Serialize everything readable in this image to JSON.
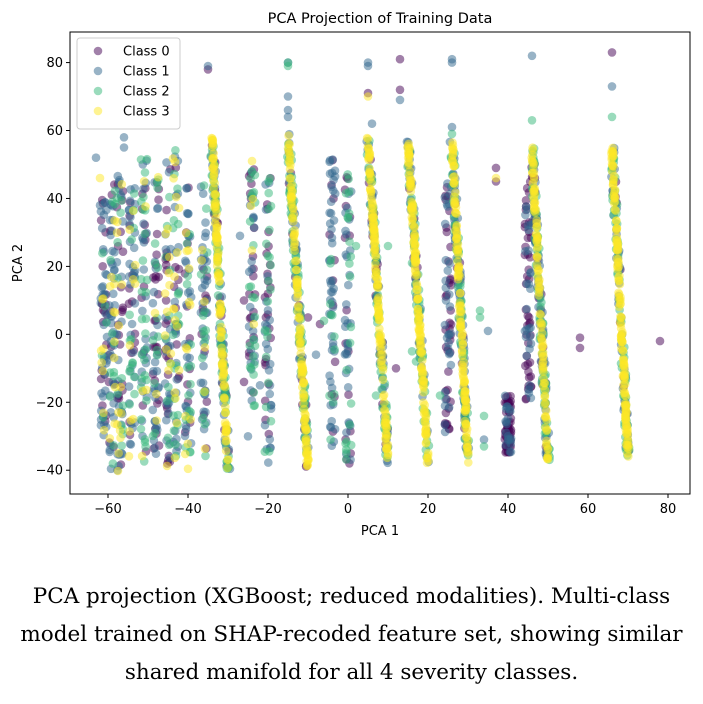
{
  "chart_data": {
    "type": "scatter",
    "title": "PCA Projection of Training Data",
    "xlabel": "PCA 1",
    "ylabel": "PCA 2",
    "xlim": [
      -69.5,
      85.5
    ],
    "ylim": [
      -47,
      89
    ],
    "xticks": [
      -60,
      -40,
      -20,
      0,
      20,
      40,
      60,
      80
    ],
    "yticks": [
      -40,
      -20,
      0,
      20,
      40,
      60,
      80
    ],
    "grid": false,
    "legend": {
      "placement": "top-left",
      "entries": [
        "Class 0",
        "Class 1",
        "Class 2",
        "Class 3"
      ]
    },
    "alpha": 0.5,
    "class_colors": [
      "#440154",
      "#31688e",
      "#35b779",
      "#fde725"
    ],
    "dense_strips": [
      {
        "x_top": -34,
        "x_bottom": -30,
        "y_min": -40,
        "y_max": 58,
        "mix": [
          0.05,
          0.2,
          0.25,
          0.5
        ]
      },
      {
        "x_top": -15,
        "x_bottom": -10,
        "y_min": -39,
        "y_max": 59,
        "mix": [
          0.05,
          0.2,
          0.25,
          0.5
        ]
      },
      {
        "x_top": 5,
        "x_bottom": 10,
        "y_min": -38,
        "y_max": 58,
        "mix": [
          0.05,
          0.2,
          0.2,
          0.55
        ]
      },
      {
        "x_top": 15,
        "x_bottom": 20,
        "y_min": -38,
        "y_max": 57,
        "mix": [
          0.05,
          0.2,
          0.2,
          0.55
        ]
      },
      {
        "x_top": 26,
        "x_bottom": 30,
        "y_min": -38,
        "y_max": 57,
        "mix": [
          0.05,
          0.2,
          0.2,
          0.55
        ]
      },
      {
        "x_top": 46,
        "x_bottom": 50,
        "y_min": -37,
        "y_max": 55,
        "mix": [
          0.05,
          0.25,
          0.25,
          0.45
        ]
      },
      {
        "x_top": 66,
        "x_bottom": 70,
        "y_min": -36,
        "y_max": 55,
        "mix": [
          0.05,
          0.2,
          0.2,
          0.55
        ]
      }
    ],
    "sparse_columns": [
      {
        "x": -61,
        "y_min": -30,
        "y_max": 40,
        "mix": [
          0.3,
          0.5,
          0.15,
          0.05
        ]
      },
      {
        "x": -59,
        "y_min": -40,
        "y_max": 45,
        "mix": [
          0.2,
          0.5,
          0.2,
          0.1
        ]
      },
      {
        "x": -57,
        "y_min": -41,
        "y_max": 49,
        "mix": [
          0.2,
          0.4,
          0.25,
          0.15
        ]
      },
      {
        "x": -54,
        "y_min": -38,
        "y_max": 44,
        "mix": [
          0.2,
          0.4,
          0.25,
          0.15
        ]
      },
      {
        "x": -51,
        "y_min": -40,
        "y_max": 53,
        "mix": [
          0.2,
          0.35,
          0.35,
          0.1
        ]
      },
      {
        "x": -48,
        "y_min": -36,
        "y_max": 50,
        "mix": [
          0.25,
          0.4,
          0.25,
          0.1
        ]
      },
      {
        "x": -45,
        "y_min": -39,
        "y_max": 51,
        "mix": [
          0.3,
          0.3,
          0.2,
          0.2
        ]
      },
      {
        "x": -43,
        "y_min": -38,
        "y_max": 55,
        "mix": [
          0.15,
          0.35,
          0.3,
          0.2
        ]
      },
      {
        "x": -40,
        "y_min": -40,
        "y_max": 45,
        "mix": [
          0.2,
          0.4,
          0.2,
          0.2
        ]
      },
      {
        "x": -36,
        "y_min": -36,
        "y_max": 45,
        "mix": [
          0.2,
          0.55,
          0.2,
          0.05
        ]
      },
      {
        "x": -24,
        "y_min": -25,
        "y_max": 50,
        "mix": [
          0.3,
          0.35,
          0.3,
          0.05
        ]
      },
      {
        "x": -20,
        "y_min": -38,
        "y_max": 46,
        "mix": [
          0.2,
          0.45,
          0.35,
          0.0
        ]
      },
      {
        "x": -4,
        "y_min": -33,
        "y_max": 53,
        "mix": [
          0.3,
          0.55,
          0.15,
          0.0
        ]
      },
      {
        "x": 0,
        "y_min": -38,
        "y_max": 48,
        "mix": [
          0.2,
          0.5,
          0.3,
          0.0
        ]
      },
      {
        "x": 25,
        "y_min": -30,
        "y_max": 45,
        "mix": [
          0.5,
          0.5,
          0.0,
          0.0
        ]
      },
      {
        "x": 40,
        "y_min": -35,
        "y_max": -18,
        "mix": [
          0.7,
          0.3,
          0.0,
          0.0
        ]
      },
      {
        "x": 45,
        "y_min": -20,
        "y_max": 45,
        "mix": [
          0.6,
          0.4,
          0.0,
          0.0
        ]
      }
    ],
    "outliers": [
      [
        -35,
        79,
        1
      ],
      [
        -35,
        78,
        0
      ],
      [
        -15,
        80,
        1
      ],
      [
        -15,
        79,
        2
      ],
      [
        -15,
        80,
        2
      ],
      [
        5,
        80,
        1
      ],
      [
        5,
        79,
        1
      ],
      [
        13,
        81,
        0
      ],
      [
        26,
        80,
        1
      ],
      [
        26,
        81,
        1
      ],
      [
        46,
        82,
        1
      ],
      [
        66,
        83,
        0
      ],
      [
        66,
        73,
        1
      ],
      [
        5,
        71,
        0
      ],
      [
        5,
        70,
        3
      ],
      [
        13,
        72,
        0
      ],
      [
        13,
        69,
        1
      ],
      [
        -15,
        70,
        1
      ],
      [
        -15,
        66,
        1
      ],
      [
        -15,
        64,
        1
      ],
      [
        46,
        63,
        2
      ],
      [
        66,
        64,
        2
      ],
      [
        6,
        62,
        1
      ],
      [
        26,
        61,
        1
      ],
      [
        26,
        59,
        2
      ],
      [
        10,
        26,
        2
      ],
      [
        2,
        26,
        2
      ],
      [
        16,
        21,
        2
      ],
      [
        -6,
        4,
        2
      ],
      [
        -7,
        3,
        0
      ],
      [
        12,
        -10,
        0
      ],
      [
        16,
        -5,
        2
      ],
      [
        17,
        -8,
        2
      ],
      [
        8,
        -9,
        2
      ],
      [
        23,
        -18,
        2
      ],
      [
        33,
        7,
        2
      ],
      [
        33,
        5,
        2
      ],
      [
        35,
        1,
        1
      ],
      [
        37,
        45,
        0
      ],
      [
        37,
        49,
        0
      ],
      [
        37,
        46,
        3
      ],
      [
        58,
        -1,
        0
      ],
      [
        58,
        -4,
        0
      ],
      [
        78,
        -2,
        0
      ],
      [
        34,
        -24,
        2
      ],
      [
        34,
        -31,
        1
      ],
      [
        34,
        -33,
        2
      ],
      [
        -25,
        -30,
        1
      ],
      [
        -24,
        48,
        2
      ],
      [
        -24,
        51,
        3
      ],
      [
        -27,
        29,
        1
      ],
      [
        -26,
        -14,
        0
      ],
      [
        -26,
        10,
        0
      ],
      [
        -22,
        -15,
        1
      ],
      [
        7,
        -18,
        2
      ],
      [
        -10,
        5,
        0
      ],
      [
        -8,
        -6,
        1
      ],
      [
        -63,
        52,
        1
      ],
      [
        -62,
        46,
        3
      ],
      [
        -62,
        38,
        1
      ],
      [
        -56,
        58,
        1
      ],
      [
        -56,
        55,
        1
      ]
    ]
  },
  "caption": {
    "line1": "PCA projection (XGBoost; reduced modalities). Multi-class",
    "line2": "model trained on SHAP-recoded feature set, showing similar",
    "line3": "shared manifold for all 4 severity classes."
  }
}
